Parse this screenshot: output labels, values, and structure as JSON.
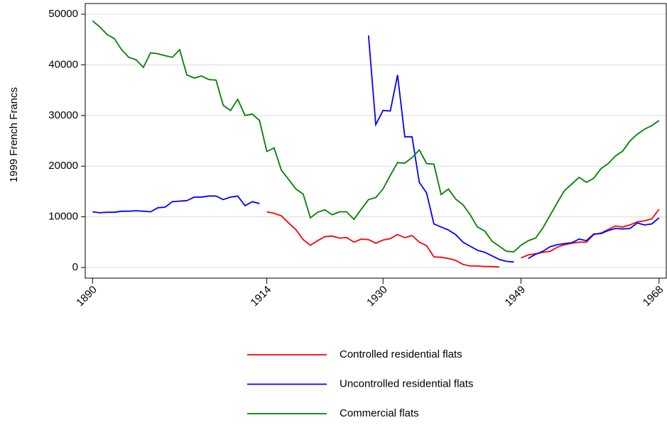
{
  "chart_data": {
    "type": "line",
    "y_label": "1999 French Francs",
    "x": [
      1890,
      1891,
      1892,
      1893,
      1894,
      1895,
      1896,
      1897,
      1898,
      1899,
      1900,
      1901,
      1902,
      1903,
      1904,
      1905,
      1906,
      1907,
      1908,
      1909,
      1910,
      1911,
      1912,
      1913,
      1914,
      1915,
      1916,
      1917,
      1918,
      1919,
      1920,
      1921,
      1922,
      1923,
      1924,
      1925,
      1926,
      1927,
      1928,
      1929,
      1930,
      1931,
      1932,
      1933,
      1934,
      1935,
      1936,
      1937,
      1938,
      1939,
      1940,
      1941,
      1942,
      1943,
      1944,
      1945,
      1946,
      1947,
      1948,
      1949,
      1950,
      1951,
      1952,
      1953,
      1954,
      1955,
      1956,
      1957,
      1958,
      1959,
      1960,
      1961,
      1962,
      1963,
      1964,
      1965,
      1966,
      1967,
      1968
    ],
    "series": [
      {
        "name": "Controlled residential flats",
        "color": "#ff0000",
        "values": [
          null,
          null,
          null,
          null,
          null,
          null,
          null,
          null,
          null,
          null,
          null,
          null,
          null,
          null,
          null,
          null,
          null,
          null,
          null,
          null,
          null,
          null,
          null,
          null,
          11000,
          10700,
          10200,
          8800,
          7500,
          5500,
          4400,
          5300,
          6100,
          6200,
          5800,
          5900,
          5000,
          5600,
          5500,
          4800,
          5400,
          5700,
          6500,
          5900,
          6300,
          5000,
          4300,
          2100,
          2000,
          1800,
          1400,
          600,
          300,
          300,
          200,
          200,
          100,
          null,
          null,
          1900,
          2500,
          2700,
          3000,
          3200,
          4000,
          4500,
          4800,
          5000,
          5000,
          6500,
          6800,
          7500,
          8200,
          8000,
          8400,
          9000,
          9200,
          9600,
          11500
        ]
      },
      {
        "name": "Uncontrolled residential flats",
        "color": "#0000ff",
        "values": [
          11000,
          10800,
          10900,
          10900,
          11100,
          11100,
          11200,
          11100,
          11000,
          11800,
          11900,
          13000,
          13100,
          13200,
          13900,
          13900,
          14100,
          14100,
          13400,
          13900,
          14100,
          12200,
          13000,
          12600,
          null,
          null,
          null,
          null,
          null,
          null,
          null,
          null,
          null,
          null,
          null,
          null,
          null,
          null,
          45800,
          28200,
          31000,
          30900,
          38000,
          25800,
          25800,
          16800,
          14700,
          8600,
          8000,
          7400,
          6500,
          5000,
          4200,
          3400,
          3000,
          2300,
          1600,
          1200,
          1100,
          null,
          1800,
          2600,
          3200,
          4100,
          4500,
          4700,
          4900,
          5600,
          5300,
          6600,
          6700,
          7300,
          7700,
          7600,
          7700,
          8800,
          8400,
          8600,
          9800
        ]
      },
      {
        "name": "Commercial flats",
        "color": "#008000",
        "values": [
          48700,
          47500,
          46000,
          45200,
          43000,
          41500,
          41000,
          39500,
          42400,
          42200,
          41800,
          41500,
          43000,
          38000,
          37400,
          37800,
          37100,
          37000,
          32000,
          31000,
          33200,
          30000,
          30300,
          29000,
          22900,
          23600,
          19200,
          17400,
          15500,
          14500,
          9800,
          10900,
          11400,
          10400,
          11000,
          11000,
          9500,
          11500,
          13400,
          13800,
          15500,
          18200,
          20700,
          20600,
          21700,
          23200,
          20500,
          20400,
          14400,
          15500,
          13500,
          12400,
          10400,
          8000,
          7200,
          5200,
          4200,
          3200,
          3100,
          4400,
          5300,
          5800,
          7800,
          10300,
          12800,
          15200,
          16500,
          17800,
          16800,
          17600,
          19500,
          20500,
          22000,
          23000,
          25000,
          26300,
          27300,
          28000,
          29000
        ]
      }
    ],
    "xlim": [
      1889,
      1969
    ],
    "xticks": [
      1890,
      1914,
      1930,
      1949,
      1968
    ],
    "ylim": [
      -2100,
      52100
    ],
    "yticks": [
      0,
      10000,
      20000,
      30000,
      40000,
      50000
    ],
    "grid": true,
    "legend": "bottom"
  }
}
